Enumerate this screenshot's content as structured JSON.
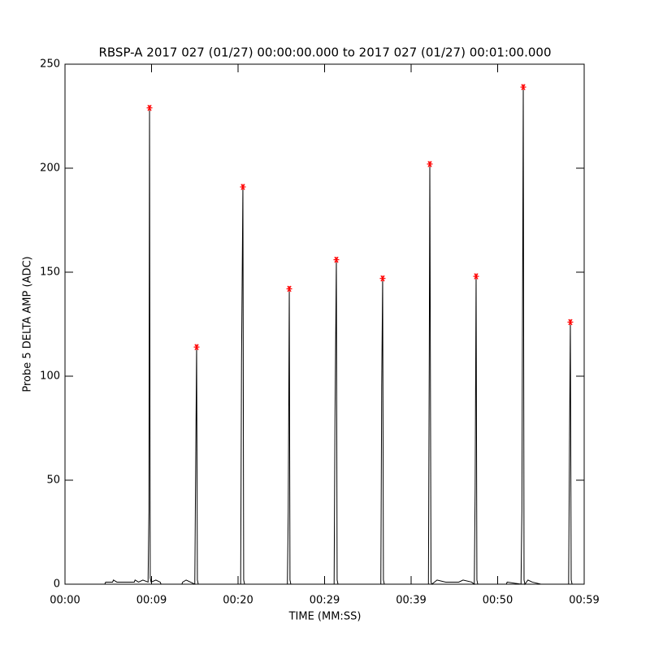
{
  "chart_data": {
    "type": "line",
    "title": "RBSP-A 2017 027 (01/27) 00:00:00.000 to 2017 027 (01/27) 00:01:00.000",
    "x_label": "TIME (MM:SS)",
    "y_label": "Probe 5 DELTA AMP (ADC)",
    "xlim": [
      0,
      60
    ],
    "ylim": [
      0,
      250
    ],
    "xticks": [
      {
        "value": 0,
        "label": "00:00"
      },
      {
        "value": 10,
        "label": "00:09"
      },
      {
        "value": 20,
        "label": "00:20"
      },
      {
        "value": 30,
        "label": "00:29"
      },
      {
        "value": 40,
        "label": "00:39"
      },
      {
        "value": 50,
        "label": "00:50"
      },
      {
        "value": 60,
        "label": "00:59"
      }
    ],
    "yticks": [
      0,
      50,
      100,
      150,
      200,
      250
    ],
    "line": {
      "color": "#000000",
      "x": [
        0,
        4.6,
        4.7,
        5.5,
        5.6,
        6.0,
        8.0,
        8.1,
        8.5,
        9.0,
        9.6,
        9.7,
        9.77,
        9.85,
        9.95,
        10.5,
        11.0,
        11.1,
        13.5,
        13.6,
        14.0,
        14.5,
        15.0,
        15.1,
        15.21,
        15.3,
        15.4,
        20.3,
        20.4,
        20.56,
        20.65,
        20.75,
        25.7,
        25.8,
        25.92,
        26.0,
        26.1,
        31.1,
        31.2,
        31.36,
        31.45,
        31.55,
        36.5,
        36.6,
        36.71,
        36.8,
        36.9,
        42.0,
        42.1,
        42.16,
        42.3,
        42.4,
        43.0,
        44.0,
        45.5,
        46.0,
        47.0,
        47.3,
        47.4,
        47.51,
        47.6,
        47.7,
        51.0,
        51.1,
        52.7,
        52.8,
        52.96,
        53.05,
        53.15,
        53.5,
        54.0,
        55.0,
        58.2,
        58.3,
        58.4,
        58.5,
        58.6,
        60
      ],
      "values": [
        0,
        0,
        1,
        1,
        2,
        1,
        1,
        2,
        1,
        2,
        1,
        35,
        229,
        3,
        1,
        2,
        1,
        0,
        0,
        1,
        2,
        1,
        0,
        55,
        114,
        2,
        0,
        0,
        107,
        191,
        2,
        0,
        0,
        35,
        142,
        2,
        0,
        0,
        79,
        156,
        2,
        0,
        0,
        95,
        147,
        2,
        0,
        0,
        113,
        202,
        1,
        0,
        2,
        1,
        1,
        2,
        1,
        0,
        46,
        148,
        2,
        0,
        0,
        1,
        0,
        35,
        239,
        2,
        0,
        2,
        1,
        0,
        0,
        65,
        126,
        2,
        0,
        0
      ]
    },
    "peaks": {
      "color": "#ff0000",
      "marker": "asterisk",
      "x": [
        9.77,
        15.21,
        20.56,
        25.92,
        31.36,
        36.71,
        42.16,
        47.51,
        52.96,
        58.4
      ],
      "values": [
        229,
        114,
        191,
        142,
        156,
        147,
        202,
        148,
        239,
        126
      ]
    }
  }
}
